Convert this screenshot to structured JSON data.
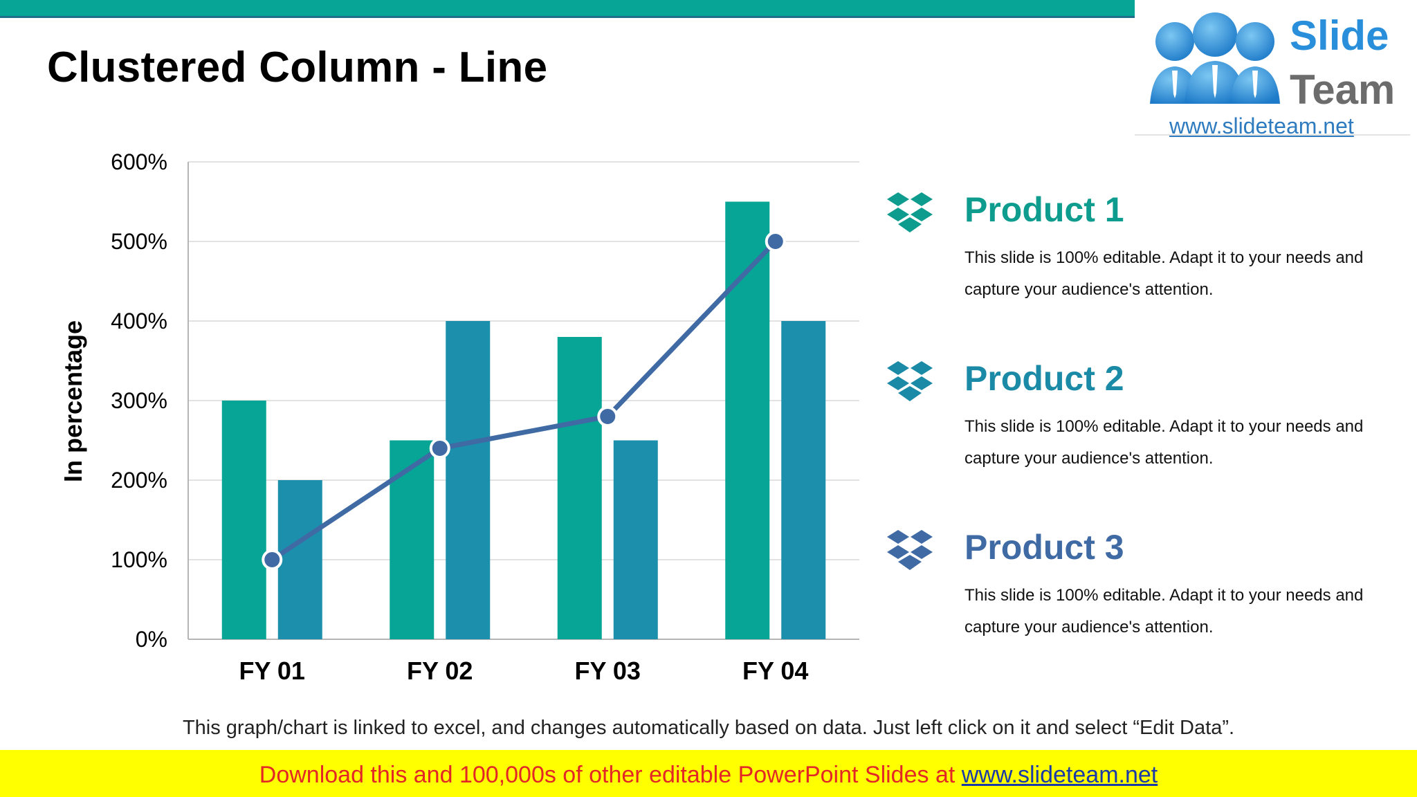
{
  "slide": {
    "title": "Clustered Column - Line",
    "note": "This graph/chart is linked to excel, and changes automatically based on data. Just left click on it and select “Edit Data”.",
    "footer": {
      "prefix": "Download this and 100,000s of other editable PowerPoint Slides at ",
      "link": "www.slideteam.net"
    },
    "logo": {
      "word1": "Slide",
      "word2": "Team",
      "url": "www.slideteam.net"
    },
    "accent_color": "#07a595",
    "line_color": "#3f6aa4"
  },
  "products": [
    {
      "name": "Product 1",
      "icon": "dropbox-icon",
      "color": "#0d9c8d",
      "desc": "This slide is 100% editable. Adapt it to your needs and capture your audience's attention."
    },
    {
      "name": "Product 2",
      "icon": "dropbox-icon",
      "color": "#1b8aa6",
      "desc": "This slide is 100% editable. Adapt it to your needs and capture your audience's attention."
    },
    {
      "name": "Product 3",
      "icon": "dropbox-icon",
      "color": "#3f6aa4",
      "desc": "This slide is 100% editable. Adapt it to your needs and capture your audience's attention."
    }
  ],
  "chart_data": {
    "type": "bar",
    "categories": [
      "FY 01",
      "FY 02",
      "FY 03",
      "FY 04"
    ],
    "series": [
      {
        "name": "Product 1",
        "kind": "bar",
        "color": "#07a595",
        "values": [
          300,
          250,
          380,
          550
        ]
      },
      {
        "name": "Product 2",
        "kind": "bar",
        "color": "#1b8fac",
        "values": [
          200,
          400,
          250,
          400
        ]
      },
      {
        "name": "Product 3",
        "kind": "line",
        "color": "#3f6aa4",
        "values": [
          100,
          240,
          280,
          500
        ]
      }
    ],
    "ylabel": "In percentage",
    "ylim": [
      0,
      600
    ],
    "yticks": [
      "0%",
      "100%",
      "200%",
      "300%",
      "400%",
      "500%",
      "600%"
    ],
    "grid": true,
    "legend": "right"
  }
}
